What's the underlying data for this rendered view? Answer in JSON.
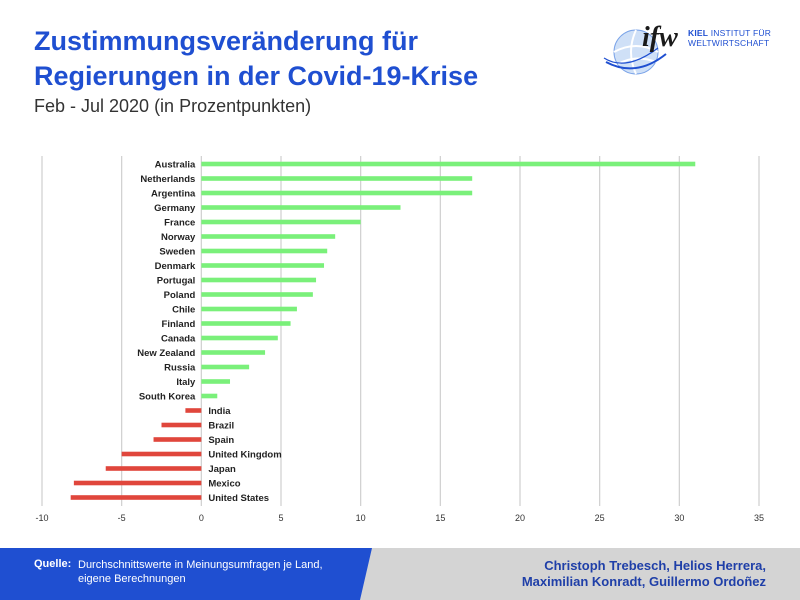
{
  "header": {
    "title": "Zustimmungsveränderung für Regierungen in der Covid-19-Krise",
    "subtitle": "Feb - Jul 2020 (in Prozentpunkten)"
  },
  "logo": {
    "mark": "ifw",
    "line1_bold": "KIEL",
    "line1_rest": " INSTITUT FÜR",
    "line2": "WELTWIRTSCHAFT",
    "icon": "globe-icon"
  },
  "footer": {
    "source_label": "Quelle:",
    "source_text": "Durchschnittswerte in Meinungsumfragen je Land, eigene Berechnungen",
    "authors_line1": "Christoph Trebesch, Helios Herrera,",
    "authors_line2": "Maximilian Konradt, Guillermo Ordoñez"
  },
  "colors": {
    "positive": "#7af07a",
    "negative": "#e0463c",
    "title": "#1f4fd1",
    "footer_blue": "#1f4fd1",
    "footer_grey": "#d4d4d4"
  },
  "chart_data": {
    "type": "bar",
    "orientation": "horizontal",
    "title": "",
    "xlabel": "",
    "ylabel": "",
    "xlim": [
      -10,
      35
    ],
    "xticks": [
      -10,
      -5,
      0,
      5,
      10,
      15,
      20,
      25,
      30,
      35
    ],
    "grid": true,
    "categories": [
      "Australia",
      "Netherlands",
      "Argentina",
      "Germany",
      "France",
      "Norway",
      "Sweden",
      "Denmark",
      "Portugal",
      "Poland",
      "Chile",
      "Finland",
      "Canada",
      "New Zealand",
      "Russia",
      "Italy",
      "South Korea",
      "India",
      "Brazil",
      "Spain",
      "United Kingdom",
      "Japan",
      "Mexico",
      "United States"
    ],
    "values": [
      31,
      17,
      17,
      12.5,
      10,
      8.4,
      7.9,
      7.7,
      7.2,
      7,
      6,
      5.6,
      4.8,
      4,
      3,
      1.8,
      1,
      -1,
      -2.5,
      -3,
      -5,
      -6,
      -8,
      -8.2
    ]
  }
}
